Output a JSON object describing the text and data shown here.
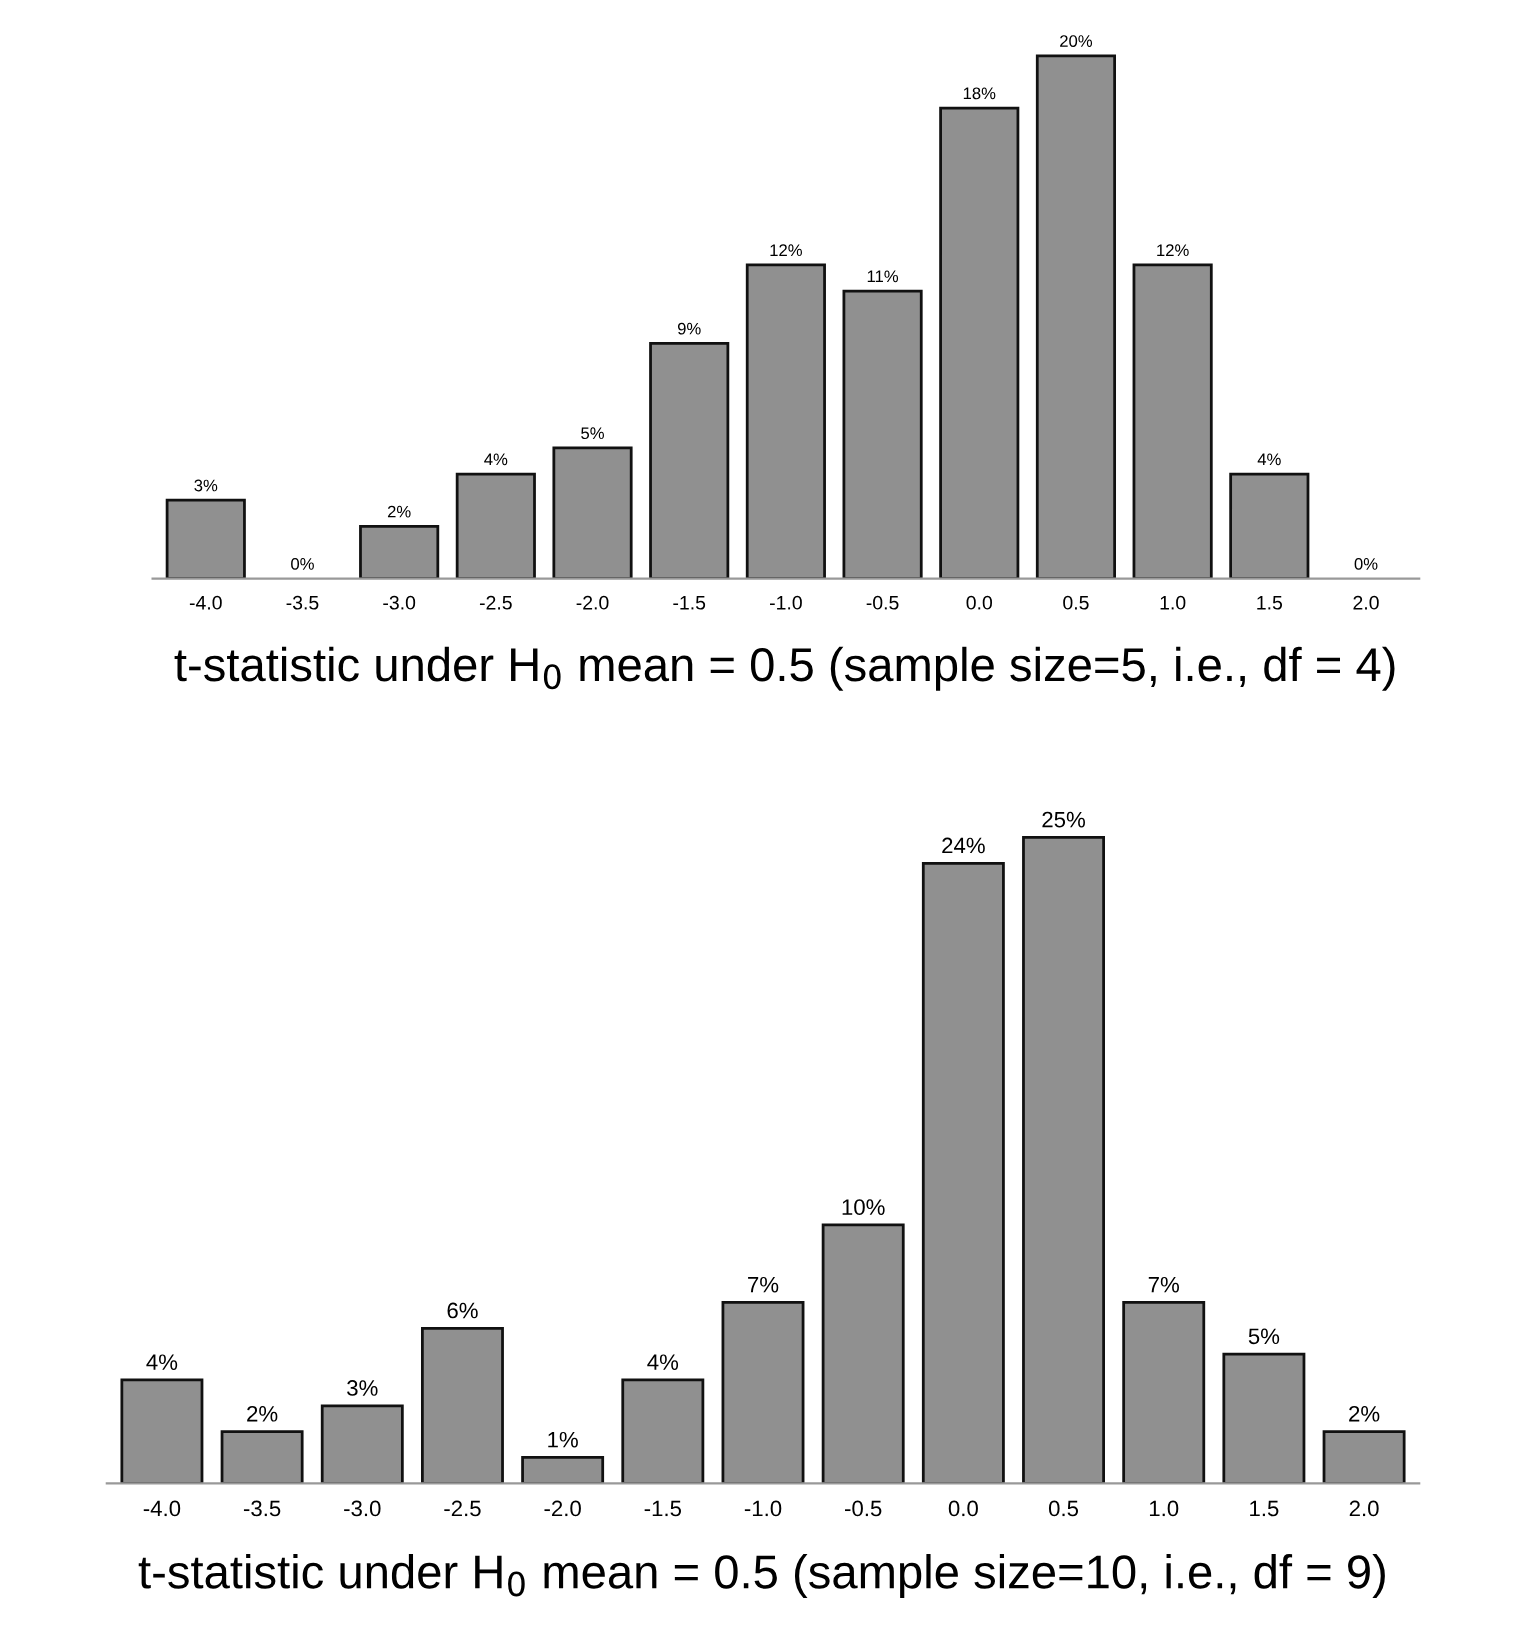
{
  "chart_data": [
    {
      "type": "bar",
      "xlabel": "t-statistic under H$_{0}$ mean = 0.5 (sample size=5, i.e., df = 4)",
      "categories": [
        "-4.0",
        "-3.5",
        "-3.0",
        "-2.5",
        "-2.0",
        "-1.5",
        "-1.0",
        "-0.5",
        "0.0",
        "0.5",
        "1.0",
        "1.5",
        "2.0"
      ],
      "color": "#909090",
      "values": [
        3,
        0,
        2,
        4,
        5,
        9,
        12,
        11,
        18,
        20,
        12,
        4,
        0
      ],
      "value_labels": [
        "3%",
        "0%",
        "2%",
        "4%",
        "5%",
        "9%",
        "12%",
        "11%",
        "18%",
        "20%",
        "12%",
        "4%",
        "0%"
      ],
      "tick_labels": "x"
    },
    {
      "type": "bar",
      "xlabel": "t-statistic under H$_{0}$ mean = 0.5 (sample size=10, i.e., df = 9)",
      "categories": [
        "-4.0",
        "-3.5",
        "-3.0",
        "-2.5",
        "-2.0",
        "-1.5",
        "-1.0",
        "-0.5",
        "0.0",
        "0.5",
        "1.0",
        "1.5",
        "2.0"
      ],
      "color": "#909090",
      "values": [
        4,
        2,
        3,
        6,
        1,
        4,
        7,
        10,
        24,
        25,
        7,
        5,
        2
      ],
      "value_labels": [
        "4%",
        "2%",
        "3%",
        "6%",
        "1%",
        "4%",
        "7%",
        "10%",
        "24%",
        "25%",
        "7%",
        "5%",
        "2%"
      ],
      "tick_labels": "x"
    }
  ]
}
